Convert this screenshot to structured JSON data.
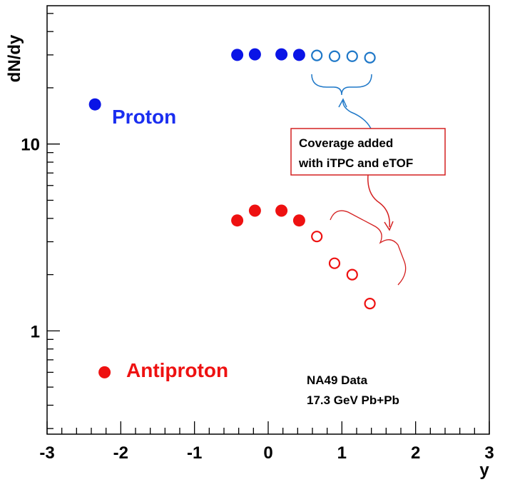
{
  "chart_data": {
    "type": "scatter",
    "xlabel": "y",
    "ylabel": "dN/dy",
    "xlim": [
      -3,
      3
    ],
    "ylim": [
      0.28,
      55
    ],
    "yscale": "log",
    "x_tick_labels": [
      {
        "value": -3,
        "label": "-3"
      },
      {
        "value": -2,
        "label": "-2"
      },
      {
        "value": -1,
        "label": "-1"
      },
      {
        "value": 0,
        "label": "0"
      },
      {
        "value": 1,
        "label": "1"
      },
      {
        "value": 2,
        "label": "2"
      },
      {
        "value": 3,
        "label": "3"
      }
    ],
    "y_tick_labels": [
      {
        "value": 1,
        "label": "1"
      },
      {
        "value": 10,
        "label": "10"
      }
    ],
    "grid": false,
    "series": [
      {
        "name": "Proton",
        "color": "#0a14e6",
        "label_color": "#1a2ef0",
        "measured": [
          {
            "x": -2.35,
            "y": 16.3
          },
          {
            "x": -0.42,
            "y": 30.0
          },
          {
            "x": -0.18,
            "y": 30.2
          },
          {
            "x": 0.18,
            "y": 30.2
          },
          {
            "x": 0.42,
            "y": 30.0
          }
        ],
        "added": [
          {
            "x": 0.66,
            "y": 29.8
          },
          {
            "x": 0.9,
            "y": 29.5
          },
          {
            "x": 1.14,
            "y": 29.5
          },
          {
            "x": 1.38,
            "y": 29.0
          }
        ],
        "added_color": "#1f78c8"
      },
      {
        "name": "Antiproton",
        "color": "#ee1111",
        "label_color": "#ee1111",
        "measured": [
          {
            "x": -2.22,
            "y": 0.6
          },
          {
            "x": -0.42,
            "y": 3.9
          },
          {
            "x": -0.18,
            "y": 4.4
          },
          {
            "x": 0.18,
            "y": 4.4
          },
          {
            "x": 0.42,
            "y": 3.9
          }
        ],
        "added": [
          {
            "x": 0.66,
            "y": 3.2
          },
          {
            "x": 0.9,
            "y": 2.3
          },
          {
            "x": 1.14,
            "y": 2.0
          },
          {
            "x": 1.38,
            "y": 1.4
          }
        ],
        "added_color": "#ee1111"
      }
    ],
    "annotations": {
      "callout_lines": [
        "Coverage added",
        "with iTPC and eTOF"
      ],
      "note_lines": [
        "NA49 Data",
        "17.3 GeV Pb+Pb"
      ]
    }
  }
}
